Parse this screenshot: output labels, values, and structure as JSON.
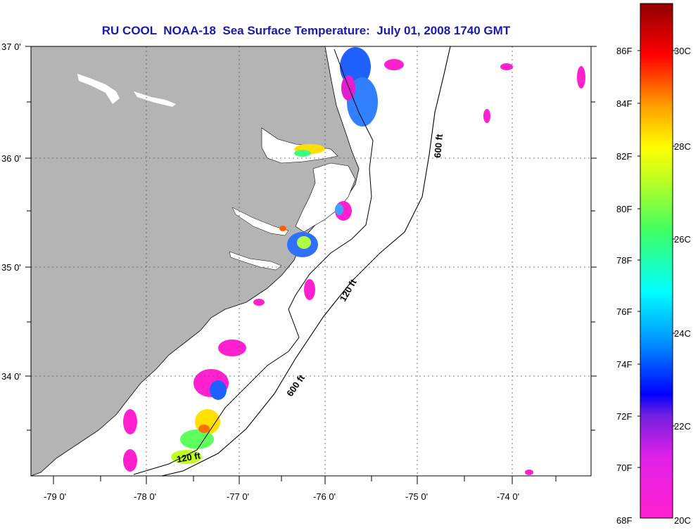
{
  "title": "RU COOL  NOAA-18  Sea Surface Temperature:  July 01, 2008 1740 GMT",
  "map": {
    "lat_labels": [
      "37 0'",
      "36 0'",
      "35 0'",
      "34 0'"
    ],
    "lon_labels": [
      "-79 0'",
      "-78 0'",
      "-77 0'",
      "-76 0'",
      "-75 0'",
      "-74 0'"
    ],
    "contour_labels": [
      "600 ft",
      "120 ft",
      "600 ft",
      "120 ft"
    ],
    "land_color": "#b4b4b4"
  },
  "colorbar": {
    "fahrenheit_labels": [
      "86F",
      "84F",
      "82F",
      "80F",
      "78F",
      "76F",
      "74F",
      "72F",
      "70F",
      "68F"
    ],
    "celsius_labels": [
      "30C",
      "28C",
      "26C",
      "24C",
      "22C",
      "20C"
    ]
  }
}
